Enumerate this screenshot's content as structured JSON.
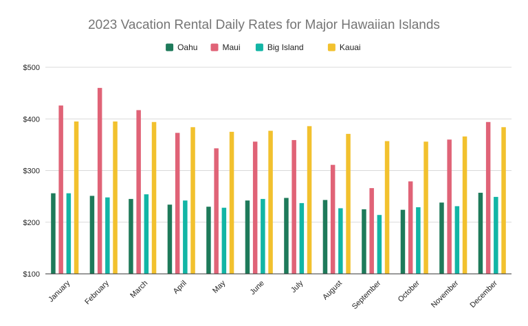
{
  "chart_data": {
    "type": "bar",
    "title": "2023 Vacation Rental Daily Rates for Major Hawaiian Islands",
    "xlabel": "",
    "ylabel": "",
    "categories": [
      "January",
      "February",
      "March",
      "April",
      "May",
      "June",
      "July",
      "August",
      "September",
      "October",
      "November",
      "December"
    ],
    "series": [
      {
        "name": "Oahu",
        "color": "#1e7a5a",
        "values": [
          256,
          251,
          245,
          234,
          230,
          242,
          247,
          243,
          225,
          224,
          238,
          257
        ]
      },
      {
        "name": "Maui",
        "color": "#e06377",
        "values": [
          426,
          460,
          417,
          373,
          343,
          356,
          359,
          311,
          266,
          279,
          360,
          394
        ]
      },
      {
        "name": "Big Island",
        "color": "#12b5a5",
        "values": [
          256,
          248,
          254,
          242,
          228,
          245,
          237,
          227,
          214,
          229,
          231,
          249
        ]
      },
      {
        "name": "Kauai",
        "color": "#f2c12e",
        "values": [
          395,
          395,
          394,
          384,
          375,
          377,
          386,
          371,
          357,
          356,
          366,
          384
        ]
      }
    ],
    "ylim": [
      100,
      500
    ],
    "yticks": [
      100,
      200,
      300,
      400,
      500
    ],
    "ytick_labels": [
      "$100",
      "$200",
      "$300",
      "$400",
      "$500"
    ],
    "grid": true,
    "legend_position": "top"
  }
}
